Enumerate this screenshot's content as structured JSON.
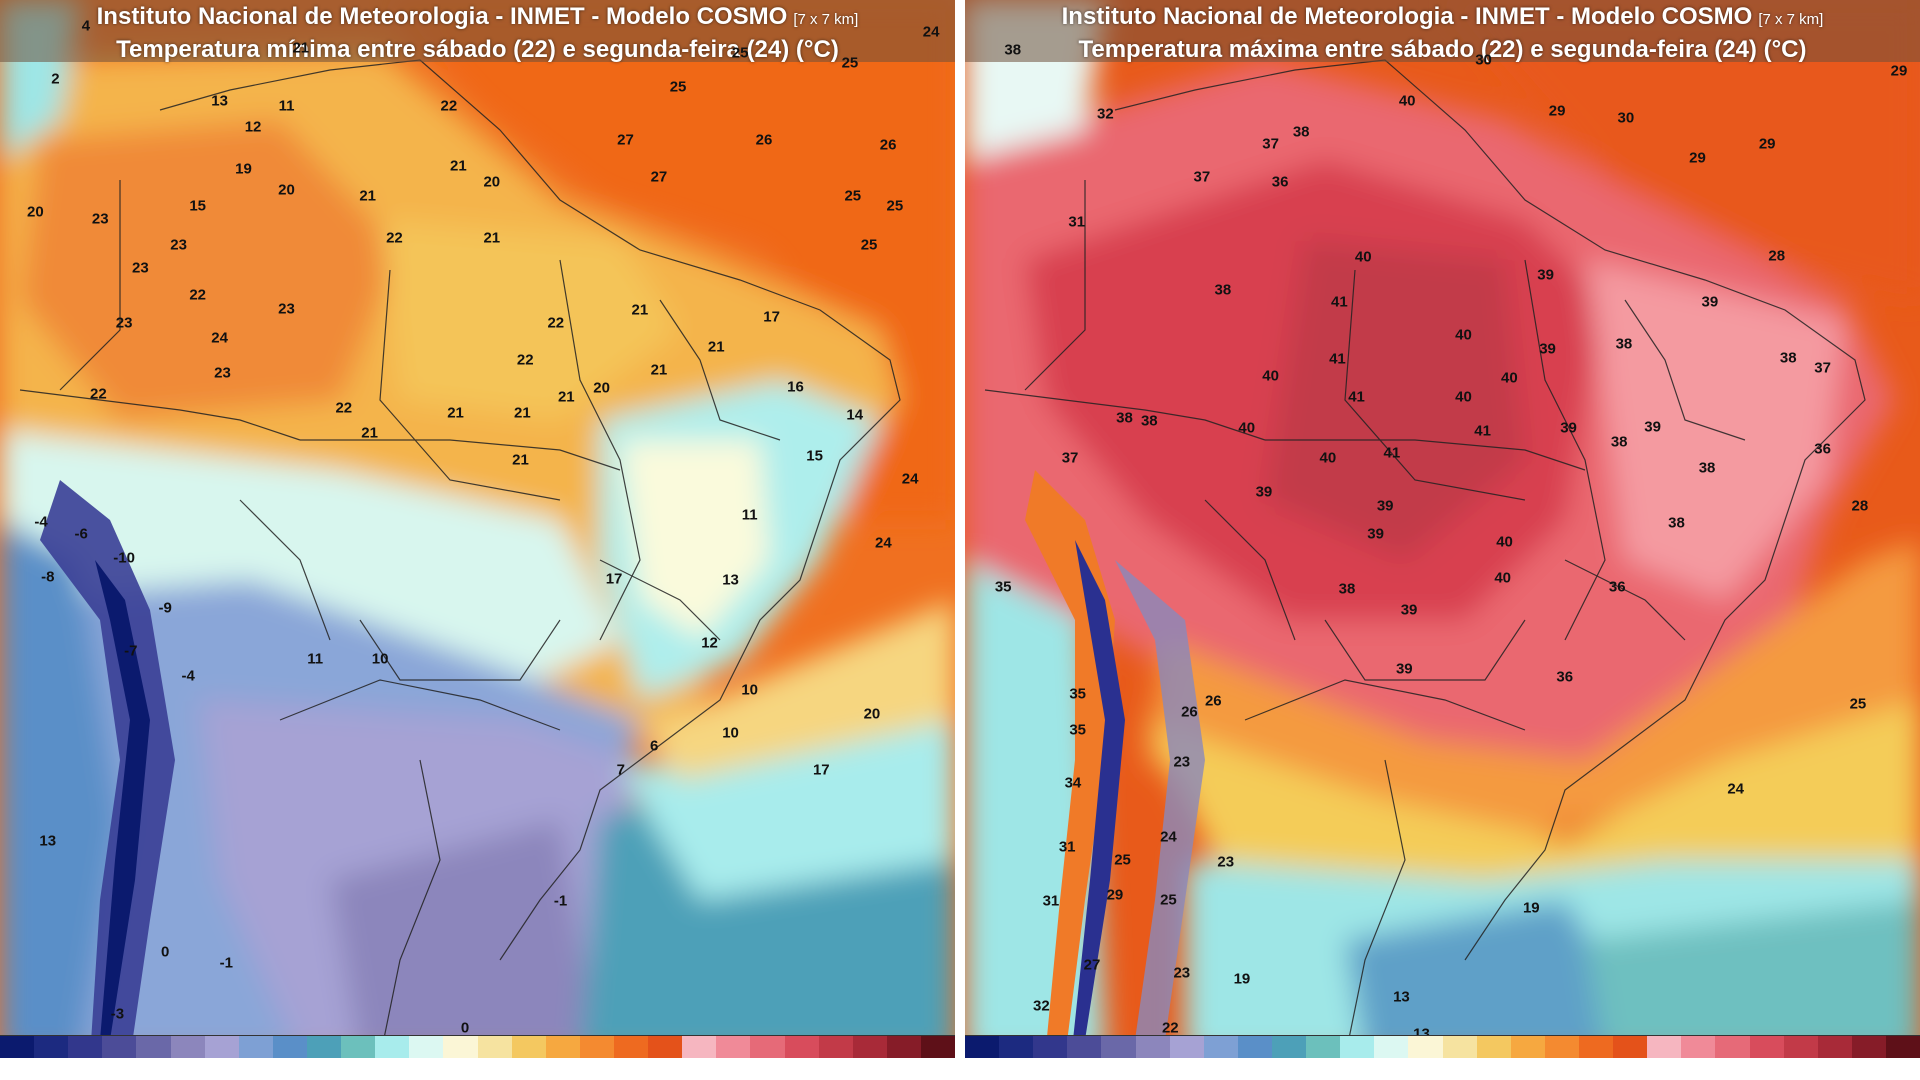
{
  "colors": {
    "min_palette": [
      "#0a1a7a",
      "#1e2a8a",
      "#3a3f96",
      "#5a5aa2",
      "#7a78b4",
      "#9c96c8",
      "#b4aee0",
      "#8aa6d8",
      "#5e8cc4",
      "#4a7fc0",
      "#5fb0b8",
      "#9ee6e6",
      "#d0f6f2",
      "#fafadc",
      "#f6e6a0",
      "#f4cc58",
      "#f6b040",
      "#f49030",
      "#f07020",
      "#e85818"
    ],
    "max_palette": [
      "#1a1a6a",
      "#2a3090",
      "#4a4a9a",
      "#6a68a8",
      "#8a88bc",
      "#8aa6d8",
      "#5fa0c8",
      "#6ec0c0",
      "#9ee6e6",
      "#d8f8f0",
      "#fcf8d8",
      "#f6e6a0",
      "#f4cc58",
      "#f49a40",
      "#f07a28",
      "#e85a1a",
      "#f49aa0",
      "#ea6870",
      "#d84050",
      "#b82a38"
    ],
    "colorbar": [
      "#0b1a6e",
      "#1c2a80",
      "#32378c",
      "#4c4c98",
      "#6a68a8",
      "#8c86bc",
      "#a6a2d4",
      "#7ea0d4",
      "#5a8fc8",
      "#4da0b8",
      "#6cc0bc",
      "#a8ecec",
      "#dcf8f2",
      "#fbf6d6",
      "#f6e3a0",
      "#f4c860",
      "#f6a840",
      "#f48a30",
      "#ee6a20",
      "#e4521a",
      "#f6b6c0",
      "#f08a98",
      "#e66a78",
      "#d84c5c",
      "#c23a48",
      "#a82a38",
      "#861c28",
      "#5e1018"
    ]
  },
  "panels": {
    "min": {
      "title_line1": "Instituto Nacional de Meteorologia - INMET - Modelo COSMO",
      "resolution": "[7 x 7 km]",
      "title_line2": "Temperatura mínima entre sábado (22) e segunda-feira (24) (°C)",
      "labels": [
        {
          "t": "24",
          "x": 97.5,
          "y": 3.0
        },
        {
          "t": "4",
          "x": 9.0,
          "y": 2.5
        },
        {
          "t": "2",
          "x": 5.8,
          "y": 7.5
        },
        {
          "t": "21",
          "x": 31.5,
          "y": 4.5
        },
        {
          "t": "25",
          "x": 71.0,
          "y": 8.2
        },
        {
          "t": "25",
          "x": 77.5,
          "y": 5.0
        },
        {
          "t": "25",
          "x": 89.0,
          "y": 6.0
        },
        {
          "t": "13",
          "x": 23.0,
          "y": 9.5
        },
        {
          "t": "11",
          "x": 30.0,
          "y": 10.0
        },
        {
          "t": "22",
          "x": 47.0,
          "y": 10.0
        },
        {
          "t": "12",
          "x": 26.5,
          "y": 12.0
        },
        {
          "t": "27",
          "x": 65.5,
          "y": 13.2
        },
        {
          "t": "26",
          "x": 80.0,
          "y": 13.2
        },
        {
          "t": "26",
          "x": 93.0,
          "y": 13.7
        },
        {
          "t": "19",
          "x": 25.5,
          "y": 16.0
        },
        {
          "t": "20",
          "x": 30.0,
          "y": 18.0
        },
        {
          "t": "21",
          "x": 48.0,
          "y": 15.7
        },
        {
          "t": "20",
          "x": 51.5,
          "y": 17.2
        },
        {
          "t": "27",
          "x": 69.0,
          "y": 16.7
        },
        {
          "t": "25",
          "x": 89.3,
          "y": 18.5
        },
        {
          "t": "25",
          "x": 93.7,
          "y": 19.5
        },
        {
          "t": "20",
          "x": 3.7,
          "y": 20.0
        },
        {
          "t": "23",
          "x": 10.5,
          "y": 20.7
        },
        {
          "t": "15",
          "x": 20.7,
          "y": 19.5
        },
        {
          "t": "21",
          "x": 38.5,
          "y": 18.5
        },
        {
          "t": "22",
          "x": 41.3,
          "y": 22.5
        },
        {
          "t": "21",
          "x": 51.5,
          "y": 22.5
        },
        {
          "t": "25",
          "x": 91.0,
          "y": 23.2
        },
        {
          "t": "23",
          "x": 18.7,
          "y": 23.2
        },
        {
          "t": "23",
          "x": 14.7,
          "y": 25.3
        },
        {
          "t": "22",
          "x": 20.7,
          "y": 27.9
        },
        {
          "t": "23",
          "x": 30.0,
          "y": 29.2
        },
        {
          "t": "21",
          "x": 67.0,
          "y": 29.3
        },
        {
          "t": "17",
          "x": 80.8,
          "y": 30.0
        },
        {
          "t": "23",
          "x": 13.0,
          "y": 30.5
        },
        {
          "t": "22",
          "x": 58.2,
          "y": 30.5
        },
        {
          "t": "24",
          "x": 23.0,
          "y": 31.9
        },
        {
          "t": "21",
          "x": 75.0,
          "y": 32.8
        },
        {
          "t": "22",
          "x": 55.0,
          "y": 34.0
        },
        {
          "t": "23",
          "x": 23.3,
          "y": 35.3
        },
        {
          "t": "21",
          "x": 69.0,
          "y": 35.0
        },
        {
          "t": "16",
          "x": 83.3,
          "y": 36.6
        },
        {
          "t": "22",
          "x": 10.3,
          "y": 37.2
        },
        {
          "t": "21",
          "x": 59.3,
          "y": 37.5
        },
        {
          "t": "20",
          "x": 63.0,
          "y": 36.7
        },
        {
          "t": "22",
          "x": 36.0,
          "y": 38.6
        },
        {
          "t": "21",
          "x": 47.7,
          "y": 39.0
        },
        {
          "t": "21",
          "x": 54.7,
          "y": 39.0
        },
        {
          "t": "14",
          "x": 89.5,
          "y": 39.2
        },
        {
          "t": "21",
          "x": 38.7,
          "y": 40.9
        },
        {
          "t": "15",
          "x": 85.3,
          "y": 43.1
        },
        {
          "t": "21",
          "x": 54.5,
          "y": 43.5
        },
        {
          "t": "24",
          "x": 95.3,
          "y": 45.3
        },
        {
          "t": "-4",
          "x": 4.3,
          "y": 49.3
        },
        {
          "t": "-6",
          "x": 8.5,
          "y": 50.5
        },
        {
          "t": "11",
          "x": 78.5,
          "y": 48.7
        },
        {
          "t": "-10",
          "x": 13.0,
          "y": 52.7
        },
        {
          "t": "24",
          "x": 92.5,
          "y": 51.3
        },
        {
          "t": "-8",
          "x": 5.0,
          "y": 54.5
        },
        {
          "t": "-9",
          "x": 17.3,
          "y": 57.5
        },
        {
          "t": "17",
          "x": 64.3,
          "y": 54.7
        },
        {
          "t": "13",
          "x": 76.5,
          "y": 54.8
        },
        {
          "t": "-7",
          "x": 13.7,
          "y": 61.5
        },
        {
          "t": "11",
          "x": 33.0,
          "y": 62.3
        },
        {
          "t": "10",
          "x": 39.8,
          "y": 62.3
        },
        {
          "t": "12",
          "x": 74.3,
          "y": 60.8
        },
        {
          "t": "-4",
          "x": 19.7,
          "y": 63.9
        },
        {
          "t": "10",
          "x": 78.5,
          "y": 65.2
        },
        {
          "t": "20",
          "x": 91.3,
          "y": 67.5
        },
        {
          "t": "10",
          "x": 76.5,
          "y": 69.3
        },
        {
          "t": "6",
          "x": 68.5,
          "y": 70.5
        },
        {
          "t": "7",
          "x": 65.0,
          "y": 72.8
        },
        {
          "t": "17",
          "x": 86.0,
          "y": 72.8
        },
        {
          "t": "13",
          "x": 5.0,
          "y": 79.5
        },
        {
          "t": "-1",
          "x": 58.7,
          "y": 85.2
        },
        {
          "t": "0",
          "x": 17.3,
          "y": 90.0
        },
        {
          "t": "-1",
          "x": 23.7,
          "y": 91.0
        },
        {
          "t": "0",
          "x": 48.7,
          "y": 97.2
        },
        {
          "t": "-3",
          "x": 12.3,
          "y": 95.8
        }
      ]
    },
    "max": {
      "title_line1": "Instituto Nacional de Meteorologia - INMET - Modelo COSMO",
      "resolution": "[7 x 7 km]",
      "title_line2": "Temperatura máxima entre sábado (22) e segunda-feira (24) (°C)",
      "labels": [
        {
          "t": "38",
          "x": 5.0,
          "y": 4.7
        },
        {
          "t": "30",
          "x": 54.3,
          "y": 5.7
        },
        {
          "t": "29",
          "x": 97.8,
          "y": 6.7
        },
        {
          "t": "40",
          "x": 46.3,
          "y": 9.5
        },
        {
          "t": "29",
          "x": 62.0,
          "y": 10.5
        },
        {
          "t": "30",
          "x": 69.2,
          "y": 11.2
        },
        {
          "t": "32",
          "x": 14.7,
          "y": 10.8
        },
        {
          "t": "38",
          "x": 35.2,
          "y": 12.5
        },
        {
          "t": "37",
          "x": 32.0,
          "y": 13.6
        },
        {
          "t": "29",
          "x": 76.7,
          "y": 14.9
        },
        {
          "t": "29",
          "x": 84.0,
          "y": 13.6
        },
        {
          "t": "37",
          "x": 24.8,
          "y": 16.7
        },
        {
          "t": "36",
          "x": 33.0,
          "y": 17.2
        },
        {
          "t": "31",
          "x": 11.7,
          "y": 21.0
        },
        {
          "t": "40",
          "x": 41.7,
          "y": 24.3
        },
        {
          "t": "28",
          "x": 85.0,
          "y": 24.2
        },
        {
          "t": "39",
          "x": 60.8,
          "y": 26.0
        },
        {
          "t": "38",
          "x": 27.0,
          "y": 27.4
        },
        {
          "t": "41",
          "x": 39.2,
          "y": 28.5
        },
        {
          "t": "39",
          "x": 78.0,
          "y": 28.5
        },
        {
          "t": "40",
          "x": 52.2,
          "y": 31.7
        },
        {
          "t": "39",
          "x": 61.0,
          "y": 33.0
        },
        {
          "t": "38",
          "x": 69.0,
          "y": 32.5
        },
        {
          "t": "41",
          "x": 39.0,
          "y": 33.9
        },
        {
          "t": "38",
          "x": 86.2,
          "y": 33.8
        },
        {
          "t": "37",
          "x": 89.8,
          "y": 34.8
        },
        {
          "t": "40",
          "x": 32.0,
          "y": 35.5
        },
        {
          "t": "40",
          "x": 57.0,
          "y": 35.7
        },
        {
          "t": "41",
          "x": 41.0,
          "y": 37.5
        },
        {
          "t": "40",
          "x": 52.2,
          "y": 37.5
        },
        {
          "t": "38",
          "x": 16.7,
          "y": 39.5
        },
        {
          "t": "38",
          "x": 19.3,
          "y": 39.8
        },
        {
          "t": "40",
          "x": 29.5,
          "y": 40.5
        },
        {
          "t": "41",
          "x": 54.2,
          "y": 40.7
        },
        {
          "t": "39",
          "x": 63.2,
          "y": 40.5
        },
        {
          "t": "39",
          "x": 72.0,
          "y": 40.4
        },
        {
          "t": "38",
          "x": 68.5,
          "y": 41.8
        },
        {
          "t": "36",
          "x": 89.8,
          "y": 42.4
        },
        {
          "t": "37",
          "x": 11.0,
          "y": 43.3
        },
        {
          "t": "40",
          "x": 38.0,
          "y": 43.3
        },
        {
          "t": "41",
          "x": 44.7,
          "y": 42.8
        },
        {
          "t": "38",
          "x": 77.7,
          "y": 44.2
        },
        {
          "t": "39",
          "x": 31.3,
          "y": 46.5
        },
        {
          "t": "39",
          "x": 44.0,
          "y": 47.8
        },
        {
          "t": "28",
          "x": 93.7,
          "y": 47.8
        },
        {
          "t": "38",
          "x": 74.5,
          "y": 49.4
        },
        {
          "t": "39",
          "x": 43.0,
          "y": 50.5
        },
        {
          "t": "40",
          "x": 56.5,
          "y": 51.2
        },
        {
          "t": "40",
          "x": 56.3,
          "y": 54.6
        },
        {
          "t": "36",
          "x": 68.3,
          "y": 55.5
        },
        {
          "t": "38",
          "x": 40.0,
          "y": 55.7
        },
        {
          "t": "39",
          "x": 46.5,
          "y": 57.7
        },
        {
          "t": "35",
          "x": 4.0,
          "y": 55.5
        },
        {
          "t": "39",
          "x": 46.0,
          "y": 63.2
        },
        {
          "t": "36",
          "x": 62.8,
          "y": 64.0
        },
        {
          "t": "35",
          "x": 11.8,
          "y": 65.6
        },
        {
          "t": "26",
          "x": 26.0,
          "y": 66.3
        },
        {
          "t": "26",
          "x": 23.5,
          "y": 67.3
        },
        {
          "t": "25",
          "x": 93.5,
          "y": 66.5
        },
        {
          "t": "35",
          "x": 11.8,
          "y": 69.0
        },
        {
          "t": "23",
          "x": 22.7,
          "y": 72.0
        },
        {
          "t": "34",
          "x": 11.3,
          "y": 74.0
        },
        {
          "t": "24",
          "x": 80.7,
          "y": 74.6
        },
        {
          "t": "24",
          "x": 21.3,
          "y": 79.1
        },
        {
          "t": "31",
          "x": 10.7,
          "y": 80.1
        },
        {
          "t": "25",
          "x": 16.5,
          "y": 81.3
        },
        {
          "t": "23",
          "x": 27.3,
          "y": 81.5
        },
        {
          "t": "29",
          "x": 15.7,
          "y": 84.6
        },
        {
          "t": "25",
          "x": 21.3,
          "y": 85.1
        },
        {
          "t": "31",
          "x": 9.0,
          "y": 85.2
        },
        {
          "t": "19",
          "x": 59.3,
          "y": 85.8
        },
        {
          "t": "27",
          "x": 13.3,
          "y": 91.2
        },
        {
          "t": "23",
          "x": 22.7,
          "y": 92.0
        },
        {
          "t": "19",
          "x": 29.0,
          "y": 92.5
        },
        {
          "t": "13",
          "x": 45.7,
          "y": 94.2
        },
        {
          "t": "32",
          "x": 8.0,
          "y": 95.1
        },
        {
          "t": "22",
          "x": 21.5,
          "y": 97.2
        },
        {
          "t": "13",
          "x": 47.8,
          "y": 97.7
        }
      ]
    }
  }
}
